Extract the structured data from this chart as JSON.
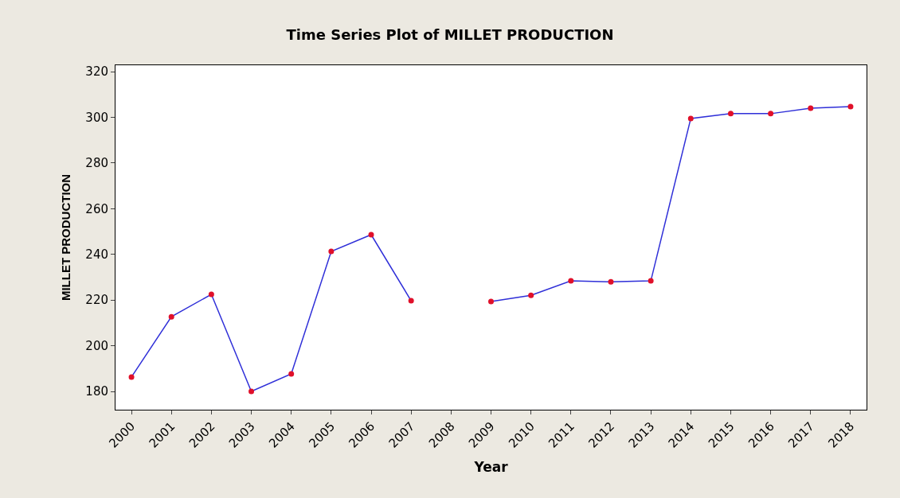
{
  "chart_data": {
    "type": "line",
    "title": "Time Series Plot of MILLET PRODUCTION",
    "xlabel": "Year",
    "ylabel": "MILLET PRODUCTION",
    "categories": [
      "2000",
      "2001",
      "2002",
      "2003",
      "2004",
      "2005",
      "2006",
      "2007",
      "2008",
      "2009",
      "2010",
      "2011",
      "2012",
      "2013",
      "2014",
      "2015",
      "2016",
      "2017",
      "2018"
    ],
    "series": [
      {
        "color": "#2f2fd8",
        "colors": [
          "#e0102a",
          "#e0102a",
          "#e0102a",
          "#e0102a",
          "#e0102a",
          "#e0102a",
          "#e0102a",
          "#e0102a",
          "#e0102a",
          "#e0102a",
          "#e0102a",
          "#e0102a",
          "#e0102a",
          "#e0102a",
          "#e0102a",
          "#e0102a",
          "#e0102a",
          "#e0102a",
          "#e0102a"
        ],
        "values": [
          186.3,
          212.7,
          222.5,
          180,
          187.7,
          241.3,
          248.6,
          219.7,
          null,
          219.4,
          222.1,
          228.4,
          228,
          228.4,
          299.5,
          301.6,
          301.6,
          304,
          304.7
        ]
      }
    ],
    "ylim": [
      172,
      322.8
    ],
    "yticks": [
      180,
      200,
      220,
      240,
      260,
      280,
      300,
      320
    ],
    "marker": "circle",
    "line_style": "solid"
  }
}
